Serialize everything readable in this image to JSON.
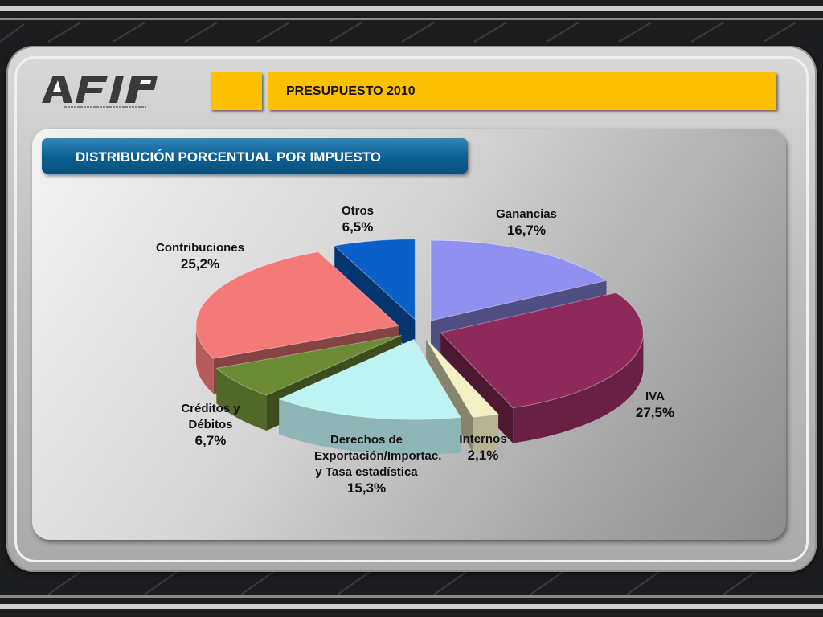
{
  "header": {
    "title": "PRESUPUESTO 2010",
    "section": "DISTRIBUCIÓN PORCENTUAL POR IMPUESTO"
  },
  "colors": {
    "accent_yellow": "#fdc000",
    "banner_blue": "#0d5f93"
  },
  "chart_data": {
    "type": "pie",
    "title": "DISTRIBUCIÓN PORCENTUAL POR IMPUESTO",
    "slices": [
      {
        "label": "Ganancias",
        "value": 16.7,
        "value_text": "16,7%",
        "color": "#9090f0"
      },
      {
        "label": "IVA",
        "value": 27.5,
        "value_text": "27,5%",
        "color": "#8d2a5b"
      },
      {
        "label": "Internos",
        "value": 2.1,
        "value_text": "2,1%",
        "color": "#f3f0c4"
      },
      {
        "label": "Derechos de Exportación/Importac. y Tasa estadística",
        "value": 15.3,
        "value_text": "15,3%",
        "color": "#bdf3f3"
      },
      {
        "label": "Créditos y Débitos",
        "value": 6.7,
        "value_text": "6,7%",
        "color": "#6b8c35"
      },
      {
        "label": "Contribuciones",
        "value": 25.2,
        "value_text": "25,2%",
        "color": "#f47a7a"
      },
      {
        "label": "Otros",
        "value": 6.5,
        "value_text": "6,5%",
        "color": "#0a5fc8"
      }
    ]
  }
}
